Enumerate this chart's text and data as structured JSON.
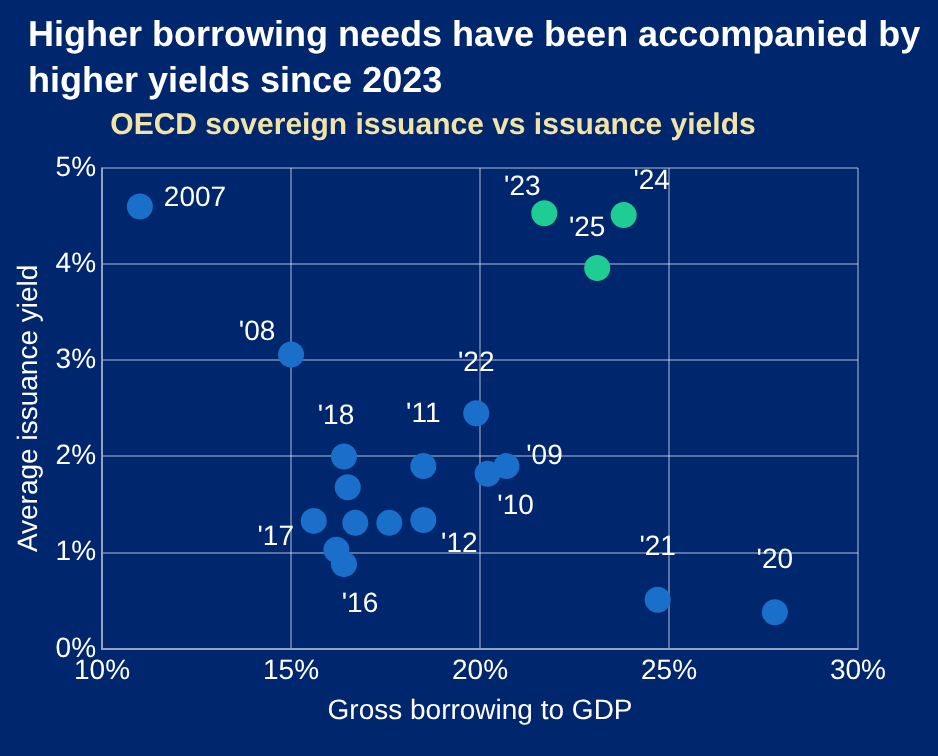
{
  "chart_data": {
    "type": "scatter",
    "title": "Higher borrowing needs have been accompanied by higher yields since 2023",
    "subtitle": "OECD sovereign issuance vs issuance yields",
    "xlabel": "Gross borrowing to GDP",
    "ylabel": "Average issuance yield",
    "series": [
      {
        "color": "#1a6fca",
        "x": [
          11.0,
          15.0,
          20.7,
          20.2,
          18.5,
          18.5,
          15.6,
          16.2,
          16.4,
          16.4,
          16.5,
          16.7,
          17.6,
          27.8,
          24.7,
          19.9
        ],
        "values": [
          4.6,
          3.06,
          1.9,
          1.82,
          1.9,
          1.34,
          1.33,
          1.03,
          0.88,
          2.0,
          1.68,
          1.31,
          1.31,
          0.38,
          0.51,
          2.45
        ]
      },
      {
        "color": "#1fcc93",
        "x": [
          21.7,
          23.8,
          23.1
        ],
        "values": [
          4.53,
          4.51,
          3.96
        ]
      }
    ],
    "xlim": [
      10,
      30
    ],
    "xticks": [
      {
        "value": 10,
        "label": "10%"
      },
      {
        "value": 15,
        "label": "15%"
      },
      {
        "value": 20,
        "label": "20%"
      },
      {
        "value": 25,
        "label": "25%"
      },
      {
        "value": 30,
        "label": "30%"
      }
    ],
    "ylim": [
      0,
      5
    ],
    "yticks": [
      {
        "value": 0,
        "label": "0%"
      },
      {
        "value": 1,
        "label": "1%"
      },
      {
        "value": 2,
        "label": "2%"
      },
      {
        "value": 3,
        "label": "3%"
      },
      {
        "value": 4,
        "label": "4%"
      },
      {
        "value": 5,
        "label": "5%"
      }
    ],
    "grid": true,
    "marker": "circle",
    "annotations": [
      {
        "text": "2007",
        "x": 11.0,
        "y": 4.6
      },
      {
        "text": "'08",
        "x": 15.0,
        "y": 3.06
      },
      {
        "text": "'22",
        "x": 19.9,
        "y": 2.45
      },
      {
        "text": "'18",
        "x": 16.4,
        "y": 2.0
      },
      {
        "text": "'11",
        "x": 18.5,
        "y": 1.9
      },
      {
        "text": "'17",
        "x": 15.6,
        "y": 1.33
      },
      {
        "text": "'12",
        "x": 18.5,
        "y": 1.34
      },
      {
        "text": "'16",
        "x": 16.4,
        "y": 0.88
      },
      {
        "text": "'09",
        "x": 20.7,
        "y": 1.9
      },
      {
        "text": "'10",
        "x": 20.2,
        "y": 1.82
      },
      {
        "text": "'21",
        "x": 24.7,
        "y": 0.51
      },
      {
        "text": "'20",
        "x": 27.8,
        "y": 0.38
      },
      {
        "text": "'23",
        "x": 21.7,
        "y": 4.53
      },
      {
        "text": "'24",
        "x": 23.8,
        "y": 4.51
      },
      {
        "text": "'25",
        "x": 23.1,
        "y": 3.96
      }
    ]
  }
}
